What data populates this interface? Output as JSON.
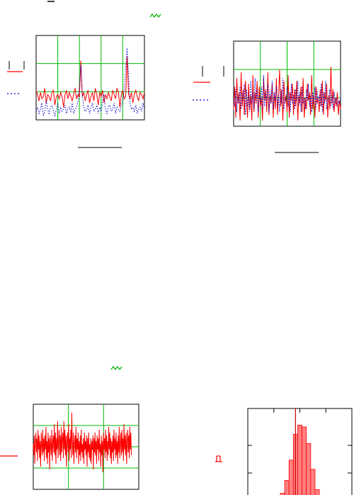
{
  "colors": {
    "series_red": "#ff0000",
    "series_blue": "#0000cc",
    "grid": "#00bb00",
    "frame": "#000000",
    "hist_fill": "#ff8080",
    "marker_green": "#00aa00"
  },
  "icons": {
    "marker_top": "zigzag-marker-icon",
    "marker_bottom": "zigzag-marker-icon",
    "hist_legend": "bar-legend-icon"
  },
  "chart_data": [
    {
      "type": "line",
      "grid": true,
      "xlim": [
        0,
        150
      ],
      "ylim": [
        0,
        4
      ],
      "x_start": 0,
      "x_step": 2,
      "series": [
        {
          "color": "#ff0000",
          "style": "solid",
          "values": [
            1.4,
            1.2,
            0.9,
            1.3,
            1.0,
            1.1,
            1.5,
            0.8,
            1.2,
            1.1,
            0.9,
            1.3,
            1.4,
            0.7,
            1.1,
            1.2,
            1.0,
            1.3,
            1.1,
            0.6,
            1.2,
            1.4,
            1.0,
            1.3,
            1.1,
            0.9,
            1.2,
            1.5,
            1.0,
            1.2,
            1.1,
            2.8,
            1.1,
            1.3,
            0.9,
            1.2,
            1.4,
            0.8,
            1.1,
            1.3,
            0.9,
            1.5,
            1.2,
            0.7,
            1.3,
            1.1,
            1.4,
            0.8,
            1.2,
            1.0,
            1.3,
            1.1,
            0.9,
            1.4,
            1.2,
            1.0,
            1.5,
            1.3,
            0.6,
            1.2,
            1.4,
            1.0,
            1.1,
            3.0,
            1.2,
            1.0,
            1.3,
            0.8,
            1.2,
            1.4,
            1.1,
            0.9,
            1.3,
            1.2,
            1.0,
            1.3
          ]
        },
        {
          "color": "#0000cc",
          "style": "dotted",
          "values": [
            0.4,
            0.6,
            0.3,
            0.5,
            0.8,
            0.2,
            0.4,
            0.9,
            0.5,
            0.3,
            0.6,
            0.7,
            0.4,
            0.2,
            0.5,
            0.8,
            0.3,
            0.6,
            0.4,
            0.5,
            0.7,
            0.3,
            0.5,
            0.6,
            0.4,
            0.8,
            0.3,
            0.5,
            0.6,
            0.9,
            1.6,
            2.6,
            1.2,
            0.6,
            0.4,
            0.5,
            0.7,
            0.3,
            0.6,
            0.8,
            0.4,
            0.5,
            0.7,
            0.3,
            0.6,
            0.4,
            0.9,
            1.2,
            0.5,
            0.3,
            0.6,
            0.7,
            0.4,
            0.5,
            0.8,
            0.3,
            0.6,
            0.5,
            0.4,
            0.7,
            0.9,
            1.4,
            2.4,
            3.4,
            2.0,
            0.8,
            0.5,
            0.6,
            0.4,
            0.7,
            0.3,
            0.5,
            0.6,
            0.4,
            0.8,
            0.5
          ]
        }
      ]
    },
    {
      "type": "line",
      "grid": true,
      "xlim": [
        0,
        150
      ],
      "ylim": [
        0,
        3
      ],
      "x_start": 0,
      "x_step": 1.5,
      "series": [
        {
          "color": "#ff0000",
          "style": "solid",
          "values": [
            0.6,
            1.4,
            0.3,
            1.7,
            0.8,
            1.2,
            0.2,
            1.9,
            0.7,
            1.3,
            0.4,
            1.6,
            0.9,
            0.3,
            1.5,
            0.6,
            1.1,
            0.2,
            1.8,
            0.5,
            1.2,
            0.8,
            1.6,
            0.3,
            1.4,
            0.7,
            1.0,
            0.2,
            1.7,
            0.9,
            1.3,
            0.5,
            1.9,
            0.4,
            1.1,
            0.8,
            1.5,
            0.3,
            1.2,
            0.6,
            1.7,
            0.4,
            1.0,
            2.0,
            0.7,
            1.3,
            0.2,
            1.6,
            0.8,
            1.1,
            0.5,
            1.8,
            0.3,
            1.2,
            0.9,
            1.5,
            0.4,
            1.3,
            0.7,
            1.6,
            0.2,
            1.1,
            0.8,
            1.4,
            0.5,
            1.7,
            0.3,
            1.0,
            0.6,
            1.5,
            0.9,
            1.2,
            0.4,
            1.8,
            0.6,
            1.1,
            0.3,
            1.4,
            0.8,
            1.0,
            0.5,
            1.3,
            0.7,
            1.6,
            0.4,
            1.2,
            0.9,
            1.5,
            0.3,
            1.1,
            0.6,
            2.1,
            0.8,
            1.3,
            0.5,
            1.0,
            0.7,
            1.2,
            0.4,
            0.9,
            0.6
          ]
        },
        {
          "color": "#0000cc",
          "style": "dotted",
          "values": [
            1.0,
            0.7,
            1.3,
            0.5,
            1.1,
            0.8,
            1.4,
            0.6,
            1.2,
            0.9,
            1.5,
            0.4,
            1.3,
            0.7,
            1.1,
            0.5,
            1.6,
            0.8,
            1.2,
            0.6,
            1.7,
            0.9,
            1.3,
            0.5,
            1.1,
            0.8,
            1.4,
            0.6,
            1.8,
            0.7,
            1.2,
            0.9,
            1.5,
            0.5,
            1.3,
            0.8,
            1.6,
            0.6,
            1.2,
            0.9,
            1.4,
            0.7,
            1.1,
            0.5,
            1.3,
            0.8,
            1.7,
            0.6,
            1.0,
            0.9,
            1.4,
            0.7,
            1.2,
            0.5,
            1.5,
            0.8,
            1.1,
            0.6,
            1.3,
            0.9,
            1.6,
            0.7,
            1.2,
            0.5,
            1.4,
            0.8,
            1.0,
            0.6,
            1.3,
            0.9,
            1.5,
            0.7,
            1.1,
            0.5,
            1.2,
            0.8,
            1.4,
            0.6,
            1.3,
            0.9,
            1.1,
            0.7,
            1.5,
            0.5,
            1.2,
            0.8,
            1.6,
            0.6,
            1.0,
            0.9,
            1.3,
            0.7,
            1.1,
            0.6,
            1.2,
            0.8,
            1.0,
            0.7,
            0.9,
            0.8,
            1.0
          ]
        }
      ]
    },
    {
      "type": "line",
      "grid": true,
      "xlim": [
        0,
        300
      ],
      "ylim": [
        -1.5,
        1.5
      ],
      "x_start": 0,
      "x_step": 1.5,
      "series": [
        {
          "color": "#ff0000",
          "style": "solid",
          "values": [
            0.1,
            -0.3,
            0.4,
            -0.6,
            0.2,
            0.5,
            -0.2,
            0.3,
            -0.5,
            0.6,
            -0.1,
            0.4,
            -0.4,
            0.2,
            -0.7,
            0.5,
            0.1,
            -0.3,
            0.6,
            -0.2,
            0.3,
            -0.5,
            0.4,
            -0.1,
            0.7,
            -0.4,
            0.2,
            -0.6,
            0.5,
            -0.2,
            0.3,
            -0.8,
            0.4,
            0.1,
            -0.3,
            0.6,
            -0.5,
            0.2,
            0.4,
            -0.2,
            0.8,
            -0.3,
            0.5,
            -0.6,
            0.3,
            -0.1,
            0.9,
            -0.4,
            0.2,
            0.6,
            -0.3,
            0.4,
            -0.5,
            0.7,
            -0.2,
            0.3,
            0.5,
            -0.4,
            0.9,
            -0.1,
            0.6,
            -0.3,
            0.4,
            -0.7,
            0.2,
            0.5,
            -0.2,
            0.8,
            -0.5,
            0.3,
            -0.1,
            0.6,
            -0.4,
            1.2,
            0.2,
            -0.3,
            0.5,
            -0.6,
            0.1,
            0.4,
            -0.2,
            0.7,
            -0.4,
            0.3,
            -0.1,
            0.5,
            -0.6,
            0.2,
            -0.3,
            0.4,
            -0.5,
            0.6,
            -0.2,
            0.1,
            -0.4,
            0.3,
            -0.6,
            0.5,
            -0.1,
            0.2,
            -0.3,
            0.4,
            -0.7,
            0.3,
            -0.2,
            0.5,
            -0.4,
            0.1,
            -0.5,
            0.3,
            -0.6,
            0.2,
            -0.1,
            0.4,
            -0.8,
            0.3,
            -0.2,
            0.5,
            -0.3,
            0.2,
            -0.6,
            0.4,
            -0.1,
            0.3,
            -0.5,
            0.6,
            -0.2,
            0.1,
            -0.7,
            0.4,
            -0.3,
            0.2,
            -0.9,
            0.5,
            -0.1,
            0.3,
            -0.4,
            0.6,
            -0.2,
            0.4,
            -0.5,
            0.2,
            -0.3,
            0.7,
            -0.1,
            0.5,
            -0.4,
            0.3,
            -0.6,
            0.2,
            -0.2,
            0.4,
            -0.5,
            0.6,
            -0.1,
            0.3,
            -0.4,
            0.5,
            -0.3,
            0.2,
            -0.6,
            0.4,
            -0.2,
            0.7,
            -0.4,
            0.1,
            0.5,
            -0.3,
            0.6,
            -0.2,
            0.3,
            -0.5,
            0.8,
            -0.1,
            0.4,
            -0.3,
            0.5,
            -0.6,
            0.2,
            0.6,
            -0.2,
            0.4,
            -0.4,
            0.7,
            -0.1,
            0.5,
            -0.3
          ]
        }
      ]
    },
    {
      "type": "bar",
      "grid": false,
      "xlim": [
        -3,
        3
      ],
      "ylim": [
        0,
        0.5
      ],
      "bin_width": 0.25,
      "bins": [
        {
          "x": -1.25,
          "value": 0.01
        },
        {
          "x": -1.0,
          "value": 0.04
        },
        {
          "x": -0.75,
          "value": 0.11
        },
        {
          "x": -0.5,
          "value": 0.22
        },
        {
          "x": -0.25,
          "value": 0.36
        },
        {
          "x": 0.0,
          "value": 0.41
        },
        {
          "x": 0.25,
          "value": 0.4
        },
        {
          "x": 0.5,
          "value": 0.31
        },
        {
          "x": 0.75,
          "value": 0.17
        },
        {
          "x": 1.0,
          "value": 0.06
        },
        {
          "x": 1.25,
          "value": 0.02
        }
      ],
      "reference_line_x": -0.25
    }
  ]
}
